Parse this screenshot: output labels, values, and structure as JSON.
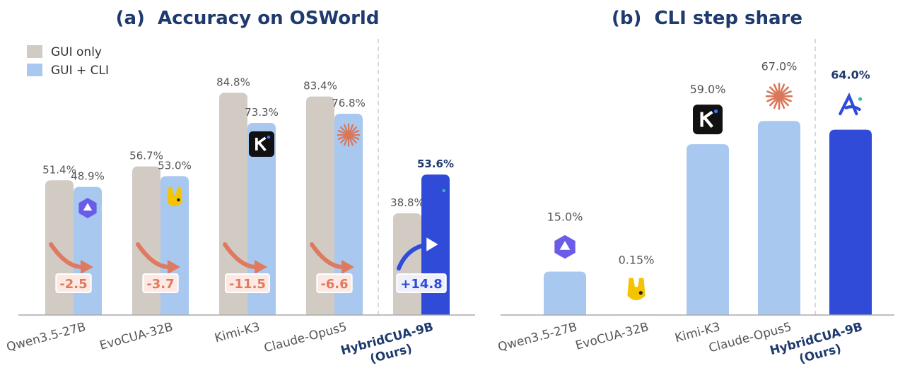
{
  "chart_data": [
    {
      "type": "bar",
      "title": "(a)  Accuracy on OSWorld",
      "categories": [
        "Qwen3.5-27B",
        "EvoCUA-32B",
        "Kimi-K3",
        "Claude-Opus5",
        "HybridCUA-9B\n(Ours)"
      ],
      "series": [
        {
          "name": "GUI only",
          "color": "#d1cbc4",
          "values": [
            51.4,
            56.7,
            84.8,
            83.4,
            38.8
          ],
          "value_labels": [
            "51.4%",
            "56.7%",
            "84.8%",
            "83.4%",
            "38.8%"
          ]
        },
        {
          "name": "GUI + CLI",
          "color": "#a8c8f0",
          "colors": [
            "#a8c8f0",
            "#a8c8f0",
            "#a8c8f0",
            "#a8c8f0",
            "#2f4bd8"
          ],
          "values": [
            48.9,
            53.0,
            73.3,
            76.8,
            53.6
          ],
          "value_labels": [
            "48.9%",
            "53.0%",
            "73.3%",
            "76.8%",
            "53.6%"
          ]
        }
      ],
      "annotations": [
        "-2.5",
        "-3.7",
        "-11.5",
        "-6.6",
        "+14.8"
      ],
      "ylim": [
        0,
        100
      ],
      "legend": "upper left"
    },
    {
      "type": "bar",
      "title": "(b)  CLI step share",
      "categories": [
        "Qwen3.5-27B",
        "EvoCUA-32B",
        "Kimi-K3",
        "Claude-Opus5",
        "HybridCUA-9B\n(Ours)"
      ],
      "values": [
        15.0,
        0.15,
        59.0,
        67.0,
        64.0
      ],
      "value_labels": [
        "15.0%",
        "0.15%",
        "59.0%",
        "67.0%",
        "64.0%"
      ],
      "color": "#a8c8f0",
      "colors": [
        "#a8c8f0",
        "#a8c8f0",
        "#a8c8f0",
        "#a8c8f0",
        "#2f4bd8"
      ],
      "ylim": [
        0,
        100
      ]
    }
  ]
}
